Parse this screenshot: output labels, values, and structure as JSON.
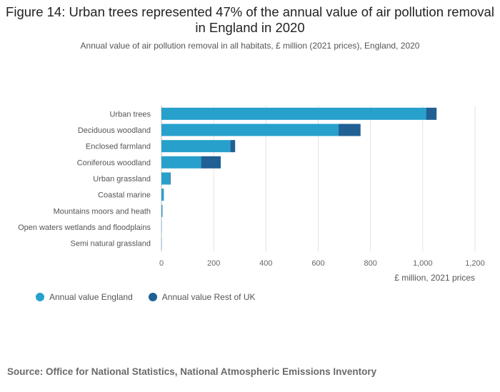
{
  "title": "Figure 14: Urban trees represented 47% of the annual value of air pollution removal in England in 2020",
  "subtitle": "Annual value of air pollution removal in all habitats, £ million (2021 prices), England, 2020",
  "source": "Source: Office for National Statistics, National Atmospheric Emissions Inventory",
  "colors": {
    "england": "#27a0cc",
    "rest_of_uk": "#206095",
    "grid": "#e3e3e3",
    "axis_text": "#666666"
  },
  "chart_data": {
    "type": "bar",
    "orientation": "horizontal",
    "stacked": true,
    "categories": [
      "Urban trees",
      "Deciduous woodland",
      "Enclosed farmland",
      "Coniferous woodland",
      "Urban grassland",
      "Coastal marine",
      "Mountains moors and heath",
      "Open waters wetlands and floodplains",
      "Semi natural grassland"
    ],
    "series": [
      {
        "name": "Annual value England",
        "values": [
          1013,
          678,
          264,
          152,
          32,
          8,
          3,
          1,
          1
        ]
      },
      {
        "name": "Annual value Rest of UK",
        "values": [
          40,
          84,
          18,
          75,
          3,
          1,
          1,
          0,
          0
        ]
      }
    ],
    "xlim": [
      0,
      1200
    ],
    "xticks": [
      "0",
      "200",
      "400",
      "600",
      "800",
      "1,000",
      "1,200"
    ],
    "xlabel": "£ million, 2021 prices",
    "ylabel": "",
    "grid": true,
    "legend_position": "bottom-left"
  }
}
